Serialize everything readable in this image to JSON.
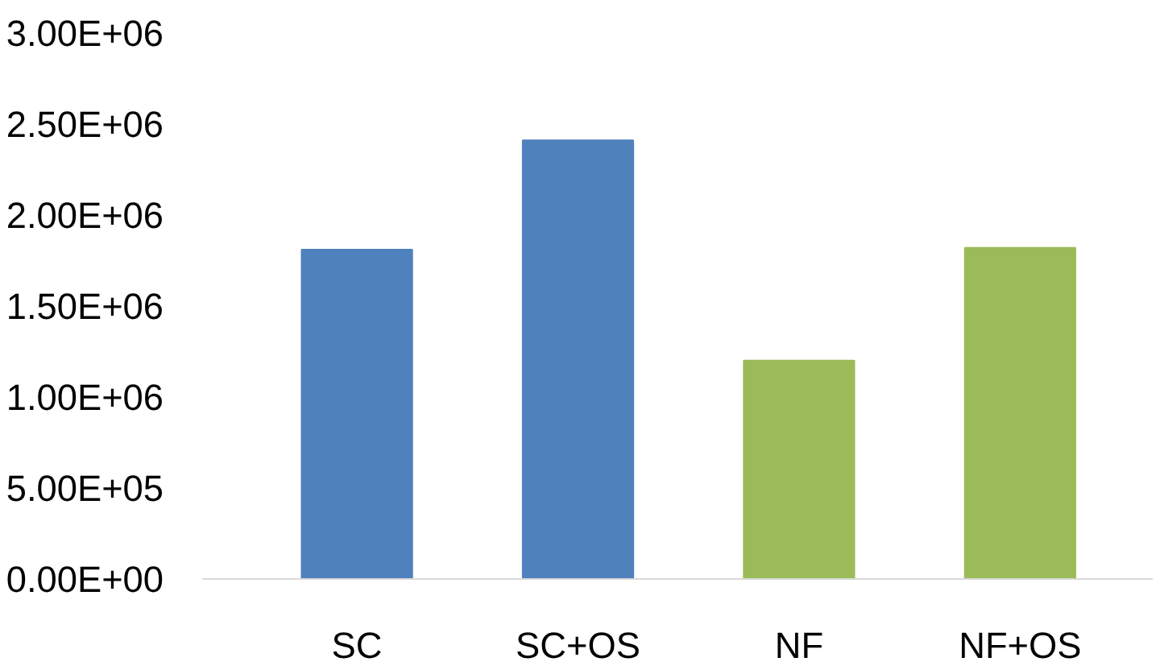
{
  "chart_data": {
    "type": "bar",
    "categories": [
      "SC",
      "SC+OS",
      "NF",
      "NF+OS"
    ],
    "values": [
      1810000,
      2410000,
      1200000,
      1820000
    ],
    "colors": [
      "#4f81bd",
      "#4f81bd",
      "#9bbb59",
      "#9bbb59"
    ],
    "ylim": [
      0,
      3000000
    ],
    "yticks": [
      {
        "value": 0,
        "label": "0.00E+00"
      },
      {
        "value": 500000,
        "label": "5.00E+05"
      },
      {
        "value": 1000000,
        "label": "1.00E+06"
      },
      {
        "value": 1500000,
        "label": "1.50E+06"
      },
      {
        "value": 2000000,
        "label": "2.00E+06"
      },
      {
        "value": 2500000,
        "label": "2.50E+06"
      },
      {
        "value": 3000000,
        "label": "3.00E+06"
      }
    ],
    "grid": false
  }
}
